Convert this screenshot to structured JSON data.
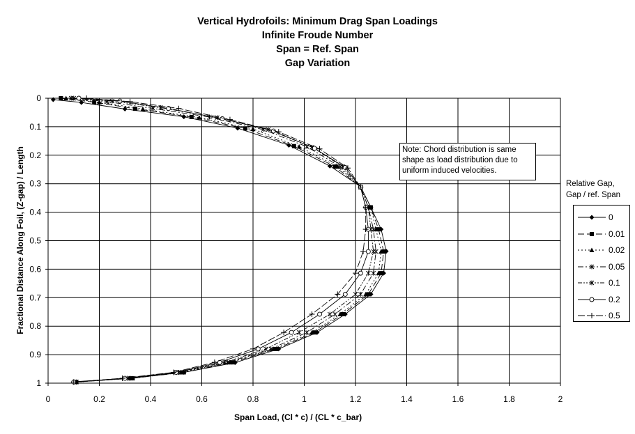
{
  "title_lines": [
    "Vertical Hydrofoils: Minimum Drag Span Loadings",
    "Infinite Froude Number",
    "Span = Ref. Span",
    "Gap Variation"
  ],
  "note": "Note:  Chord distribution is same shape as load distribution due to uniform induced velocities.",
  "legend_title": [
    "Relative Gap,",
    "Gap / ref. Span"
  ],
  "chart_data": {
    "type": "line",
    "xlabel": "Span Load, (Cl * c) / (CL * c_bar)",
    "ylabel": "Fractional Distance Along Foil, (Z-gap)  /  Length",
    "xlim": [
      0,
      2
    ],
    "ylim": [
      0,
      1
    ],
    "y_inverted": true,
    "x_ticks": [
      "0",
      "0.2",
      "0.4",
      "0.6",
      "0.8",
      "1",
      "1.2",
      "1.4",
      "1.6",
      "1.8",
      "2"
    ],
    "y_ticks": [
      "0",
      "0.1",
      "0.2",
      "0.3",
      "0.4",
      "0.5",
      "0.6",
      "0.7",
      "0.8",
      "0.9",
      "1"
    ],
    "grid": true,
    "legend_position": "right",
    "series": [
      {
        "name": "0",
        "marker": "diamond",
        "dash": "",
        "points": [
          [
            0.02,
            0.005
          ],
          [
            0.13,
            0.015
          ],
          [
            0.3,
            0.038
          ],
          [
            0.53,
            0.065
          ],
          [
            0.74,
            0.105
          ],
          [
            0.94,
            0.165
          ],
          [
            1.1,
            0.238
          ],
          [
            1.22,
            0.31
          ],
          [
            1.26,
            0.383
          ],
          [
            1.3,
            0.46
          ],
          [
            1.32,
            0.537
          ],
          [
            1.31,
            0.614
          ],
          [
            1.26,
            0.688
          ],
          [
            1.16,
            0.758
          ],
          [
            1.05,
            0.822
          ],
          [
            0.9,
            0.88
          ],
          [
            0.73,
            0.928
          ],
          [
            0.53,
            0.962
          ],
          [
            0.32,
            0.983
          ],
          [
            0.1,
            0.995
          ]
        ]
      },
      {
        "name": "0.01",
        "marker": "square",
        "dash": "9,4",
        "points": [
          [
            0.05,
            0.0
          ],
          [
            0.18,
            0.014
          ],
          [
            0.34,
            0.037
          ],
          [
            0.56,
            0.066
          ],
          [
            0.77,
            0.106
          ],
          [
            0.96,
            0.168
          ],
          [
            1.12,
            0.24
          ],
          [
            1.22,
            0.312
          ],
          [
            1.26,
            0.383
          ],
          [
            1.29,
            0.46
          ],
          [
            1.31,
            0.538
          ],
          [
            1.3,
            0.614
          ],
          [
            1.25,
            0.688
          ],
          [
            1.15,
            0.758
          ],
          [
            1.04,
            0.822
          ],
          [
            0.89,
            0.88
          ],
          [
            0.72,
            0.927
          ],
          [
            0.53,
            0.962
          ],
          [
            0.33,
            0.983
          ],
          [
            0.11,
            0.996
          ]
        ]
      },
      {
        "name": "0.02",
        "marker": "triangle",
        "dash": "2,3",
        "points": [
          [
            0.07,
            0.0
          ],
          [
            0.2,
            0.014
          ],
          [
            0.37,
            0.038
          ],
          [
            0.59,
            0.068
          ],
          [
            0.8,
            0.108
          ],
          [
            0.98,
            0.17
          ],
          [
            1.13,
            0.24
          ],
          [
            1.22,
            0.312
          ],
          [
            1.26,
            0.383
          ],
          [
            1.28,
            0.46
          ],
          [
            1.3,
            0.538
          ],
          [
            1.29,
            0.614
          ],
          [
            1.24,
            0.688
          ],
          [
            1.14,
            0.758
          ],
          [
            1.03,
            0.822
          ],
          [
            0.88,
            0.88
          ],
          [
            0.71,
            0.927
          ],
          [
            0.52,
            0.962
          ],
          [
            0.33,
            0.983
          ],
          [
            0.11,
            0.996
          ]
        ]
      },
      {
        "name": "0.05",
        "marker": "star",
        "dash": "8,3,2,3",
        "points": [
          [
            0.09,
            0.0
          ],
          [
            0.23,
            0.012
          ],
          [
            0.41,
            0.036
          ],
          [
            0.63,
            0.066
          ],
          [
            0.84,
            0.11
          ],
          [
            1.01,
            0.17
          ],
          [
            1.14,
            0.24
          ],
          [
            1.22,
            0.312
          ],
          [
            1.25,
            0.383
          ],
          [
            1.27,
            0.46
          ],
          [
            1.28,
            0.538
          ],
          [
            1.27,
            0.614
          ],
          [
            1.22,
            0.688
          ],
          [
            1.12,
            0.758
          ],
          [
            1.01,
            0.822
          ],
          [
            0.87,
            0.88
          ],
          [
            0.7,
            0.927
          ],
          [
            0.51,
            0.962
          ],
          [
            0.32,
            0.983
          ],
          [
            0.11,
            0.996
          ]
        ]
      },
      {
        "name": "0.1",
        "marker": "star",
        "dash": "6,2,2,2,2,2",
        "points": [
          [
            0.1,
            0.0
          ],
          [
            0.25,
            0.01
          ],
          [
            0.44,
            0.033
          ],
          [
            0.66,
            0.068
          ],
          [
            0.86,
            0.11
          ],
          [
            1.03,
            0.172
          ],
          [
            1.15,
            0.24
          ],
          [
            1.22,
            0.312
          ],
          [
            1.25,
            0.383
          ],
          [
            1.26,
            0.46
          ],
          [
            1.27,
            0.538
          ],
          [
            1.25,
            0.614
          ],
          [
            1.2,
            0.688
          ],
          [
            1.1,
            0.758
          ],
          [
            0.98,
            0.822
          ],
          [
            0.85,
            0.88
          ],
          [
            0.69,
            0.927
          ],
          [
            0.5,
            0.962
          ],
          [
            0.31,
            0.983
          ],
          [
            0.11,
            0.996
          ]
        ]
      },
      {
        "name": "0.2",
        "marker": "circle",
        "dash": "",
        "points": [
          [
            0.12,
            0.0
          ],
          [
            0.28,
            0.01
          ],
          [
            0.47,
            0.036
          ],
          [
            0.68,
            0.072
          ],
          [
            0.88,
            0.115
          ],
          [
            1.04,
            0.176
          ],
          [
            1.16,
            0.243
          ],
          [
            1.22,
            0.312
          ],
          [
            1.24,
            0.383
          ],
          [
            1.25,
            0.46
          ],
          [
            1.25,
            0.538
          ],
          [
            1.22,
            0.614
          ],
          [
            1.16,
            0.688
          ],
          [
            1.06,
            0.758
          ],
          [
            0.95,
            0.822
          ],
          [
            0.82,
            0.88
          ],
          [
            0.67,
            0.927
          ],
          [
            0.5,
            0.962
          ],
          [
            0.3,
            0.983
          ],
          [
            0.1,
            0.996
          ]
        ]
      },
      {
        "name": "0.5",
        "marker": "plus",
        "dash": "10,3",
        "points": [
          [
            0.15,
            0.0
          ],
          [
            0.32,
            0.012
          ],
          [
            0.51,
            0.036
          ],
          [
            0.71,
            0.075
          ],
          [
            0.9,
            0.118
          ],
          [
            1.06,
            0.178
          ],
          [
            1.17,
            0.245
          ],
          [
            1.22,
            0.312
          ],
          [
            1.24,
            0.383
          ],
          [
            1.24,
            0.46
          ],
          [
            1.23,
            0.538
          ],
          [
            1.2,
            0.614
          ],
          [
            1.13,
            0.688
          ],
          [
            1.03,
            0.758
          ],
          [
            0.92,
            0.822
          ],
          [
            0.8,
            0.88
          ],
          [
            0.65,
            0.927
          ],
          [
            0.49,
            0.962
          ],
          [
            0.29,
            0.983
          ],
          [
            0.1,
            0.996
          ]
        ]
      }
    ]
  }
}
